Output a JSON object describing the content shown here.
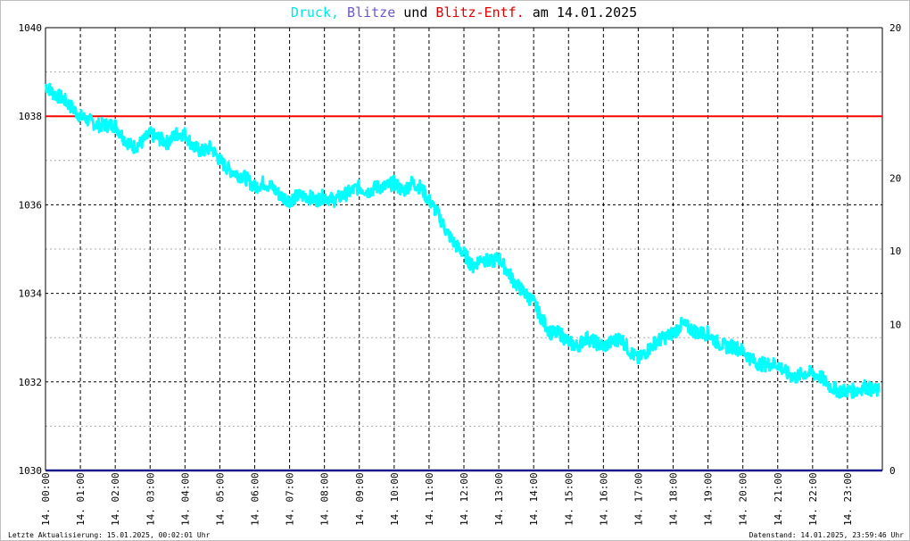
{
  "header": {
    "title_druck": "Druck,",
    "title_blitze": "Blitze",
    "title_und": "und",
    "title_entf": "Blitz-Entf.",
    "title_date": "am 14.01.2025"
  },
  "footer": {
    "left": "Letzte Aktualisierung: 15.01.2025, 00:02:01 Uhr",
    "right": "Datenstand: 14.01.2025, 23:59:46 Uhr"
  },
  "colors": {
    "druck": "#00ffff",
    "blitze": "#6a5acd",
    "entf": "#e00000",
    "threshold": "#ff0000",
    "baseline": "#1a1a8c"
  },
  "chart_data": {
    "type": "line",
    "x_tick_labels": [
      "14. 00:00",
      "14. 01:00",
      "14. 02:00",
      "14. 03:00",
      "14. 04:00",
      "14. 05:00",
      "14. 06:00",
      "14. 07:00",
      "14. 08:00",
      "14. 09:00",
      "14. 10:00",
      "14. 11:00",
      "14. 12:00",
      "14. 13:00",
      "14. 14:00",
      "14. 15:00",
      "14. 16:00",
      "14. 17:00",
      "14. 18:00",
      "14. 19:00",
      "14. 20:00",
      "14. 21:00",
      "14. 22:00",
      "14. 23:00"
    ],
    "y_left": {
      "min": 1030,
      "max": 1040,
      "ticks": [
        "1030",
        "1032",
        "1034",
        "1036",
        "1038",
        "1040"
      ]
    },
    "y_right_black": [
      "0",
      "20"
    ],
    "y_right_red": [
      "10",
      "20"
    ],
    "y_right_black_mid": [
      "10"
    ],
    "threshold_value": 1038,
    "grid": true,
    "series": [
      {
        "name": "Druck",
        "x_hours": [
          0,
          0.25,
          0.5,
          0.75,
          1,
          1.25,
          1.5,
          1.75,
          2,
          2.25,
          2.5,
          2.75,
          3,
          3.25,
          3.5,
          3.75,
          4,
          4.25,
          4.5,
          4.75,
          5,
          5.25,
          5.5,
          5.75,
          6,
          6.25,
          6.5,
          6.75,
          7,
          7.25,
          7.5,
          7.75,
          8,
          8.25,
          8.5,
          8.75,
          9,
          9.25,
          9.5,
          9.75,
          10,
          10.25,
          10.5,
          10.75,
          11,
          11.25,
          11.5,
          11.75,
          12,
          12.25,
          12.5,
          12.75,
          13,
          13.25,
          13.5,
          13.75,
          14,
          14.25,
          14.5,
          14.75,
          15,
          15.25,
          15.5,
          15.75,
          16,
          16.25,
          16.5,
          16.75,
          17,
          17.25,
          17.5,
          17.75,
          18,
          18.25,
          18.5,
          18.75,
          19,
          19.25,
          19.5,
          19.75,
          20,
          20.25,
          20.5,
          20.75,
          21,
          21.25,
          21.5,
          21.75,
          22,
          22.25,
          22.5,
          22.75,
          23,
          23.25,
          23.5,
          23.75,
          24
        ],
        "values": [
          1038.7,
          1038.5,
          1038.4,
          1038.2,
          1038.0,
          1037.9,
          1037.8,
          1037.8,
          1037.8,
          1037.5,
          1037.3,
          1037.4,
          1037.6,
          1037.5,
          1037.4,
          1037.6,
          1037.6,
          1037.3,
          1037.2,
          1037.3,
          1037.0,
          1036.8,
          1036.7,
          1036.6,
          1036.4,
          1036.5,
          1036.4,
          1036.2,
          1036.1,
          1036.2,
          1036.2,
          1036.1,
          1036.2,
          1036.1,
          1036.2,
          1036.3,
          1036.4,
          1036.3,
          1036.4,
          1036.4,
          1036.5,
          1036.3,
          1036.5,
          1036.4,
          1036.1,
          1035.8,
          1035.4,
          1035.1,
          1034.9,
          1034.6,
          1034.8,
          1034.7,
          1034.8,
          1034.5,
          1034.2,
          1034.0,
          1033.8,
          1033.4,
          1033.1,
          1033.1,
          1032.9,
          1032.8,
          1033.0,
          1032.9,
          1032.8,
          1032.9,
          1033.0,
          1032.7,
          1032.5,
          1032.7,
          1032.9,
          1033.0,
          1033.1,
          1033.3,
          1033.2,
          1033.1,
          1033.1,
          1032.9,
          1032.8,
          1032.8,
          1032.7,
          1032.5,
          1032.4,
          1032.4,
          1032.4,
          1032.2,
          1032.1,
          1032.2,
          1032.2,
          1032.1,
          1031.9,
          1031.8,
          1031.8,
          1031.8,
          1031.9,
          1031.8,
          1031.8
        ]
      }
    ]
  }
}
